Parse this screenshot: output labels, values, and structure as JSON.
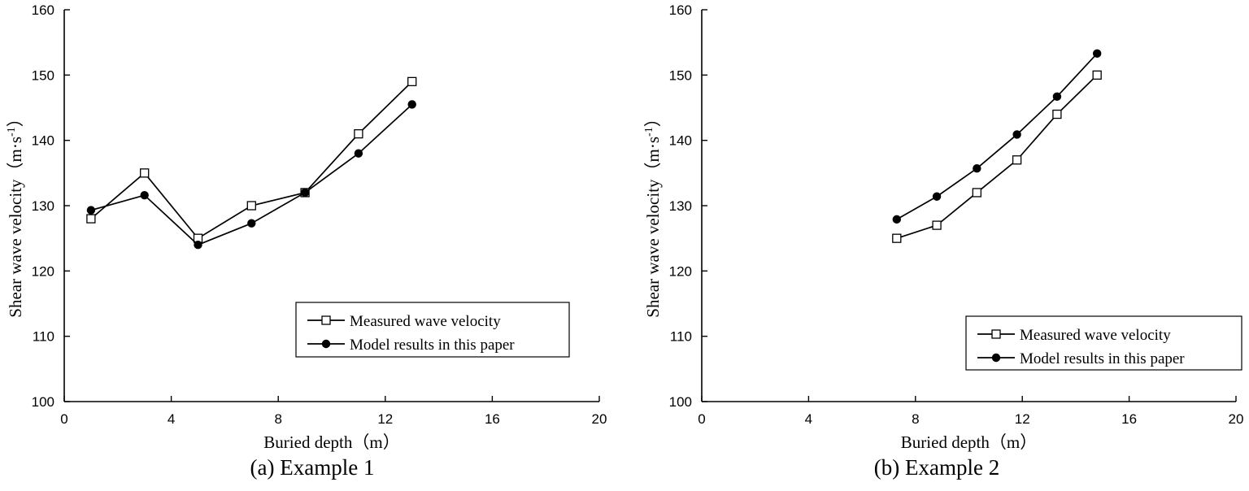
{
  "chart_data": [
    {
      "type": "line",
      "caption": "(a)  Example 1",
      "xlabel": "Buried depth（m）",
      "ylabel": "Shear wave velocity（m·s",
      "ylabel_sup": "-1",
      "ylabel_close": "）",
      "xlim": [
        0,
        20
      ],
      "ylim": [
        100,
        160
      ],
      "xticks": [
        "0",
        "4",
        "8",
        "12",
        "16",
        "20"
      ],
      "yticks": [
        "100",
        "110",
        "120",
        "130",
        "140",
        "150",
        "160"
      ],
      "legend_position": "bottom-right",
      "series": [
        {
          "name": "Measured wave velocity",
          "marker": "open-square",
          "x": [
            1,
            3,
            5,
            7,
            9,
            11,
            13
          ],
          "y": [
            128,
            135,
            125,
            130,
            132,
            141,
            149
          ]
        },
        {
          "name": "Model results in this paper",
          "marker": "filled-circle",
          "x": [
            1,
            3,
            5,
            7,
            9,
            11,
            13
          ],
          "y": [
            129.3,
            131.6,
            124.0,
            127.3,
            132.0,
            138.0,
            145.5
          ]
        }
      ]
    },
    {
      "type": "line",
      "caption": "(b)  Example 2",
      "xlabel": "Buried depth（m）",
      "ylabel": "Shear wave velocity（m·s",
      "ylabel_sup": "-1",
      "ylabel_close": "）",
      "xlim": [
        0,
        20
      ],
      "ylim": [
        100,
        160
      ],
      "xticks": [
        "0",
        "4",
        "8",
        "12",
        "16",
        "20"
      ],
      "yticks": [
        "100",
        "110",
        "120",
        "130",
        "140",
        "150",
        "160"
      ],
      "legend_position": "bottom-right",
      "series": [
        {
          "name": "Measured wave velocity",
          "marker": "open-square",
          "x": [
            7.3,
            8.8,
            10.3,
            11.8,
            13.3,
            14.8
          ],
          "y": [
            125,
            127,
            132,
            137,
            144,
            150
          ]
        },
        {
          "name": "Model results in this paper",
          "marker": "filled-circle",
          "x": [
            7.3,
            8.8,
            10.3,
            11.8,
            13.3,
            14.8
          ],
          "y": [
            127.9,
            131.4,
            135.7,
            140.9,
            146.7,
            153.3
          ]
        }
      ]
    }
  ]
}
